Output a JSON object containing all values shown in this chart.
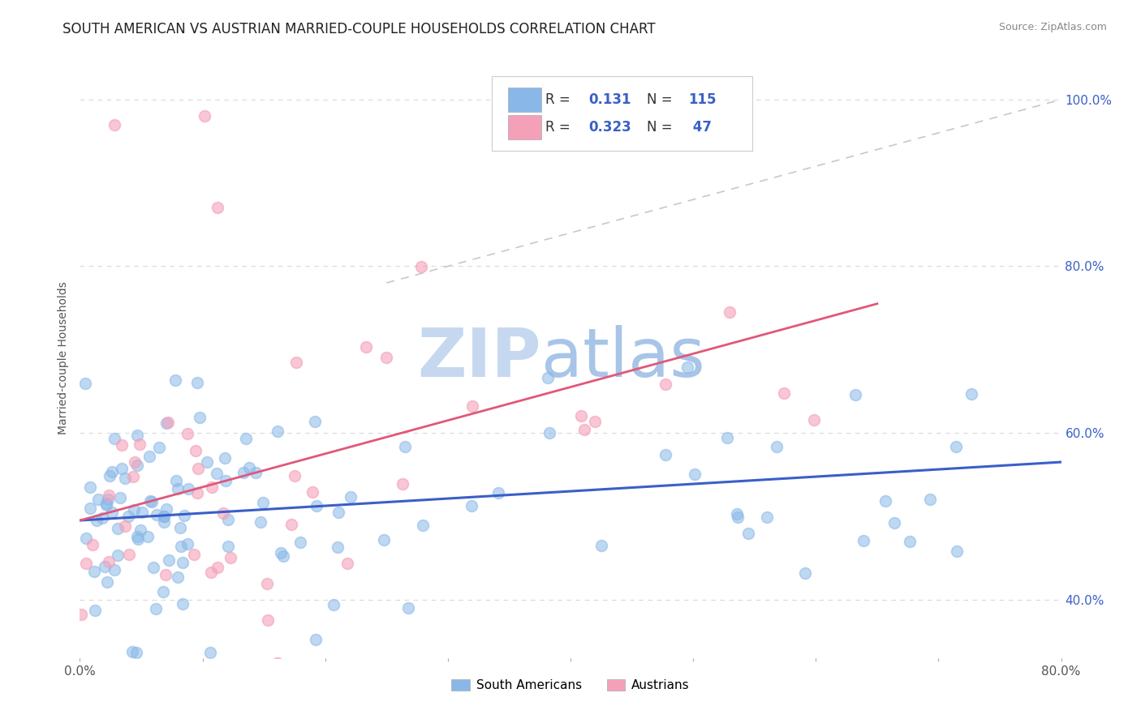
{
  "title": "SOUTH AMERICAN VS AUSTRIAN MARRIED-COUPLE HOUSEHOLDS CORRELATION CHART",
  "source_text": "Source: ZipAtlas.com",
  "ylabel": "Married-couple Households",
  "xlim": [
    0.0,
    0.8
  ],
  "ylim": [
    0.33,
    1.05
  ],
  "x_ticks": [
    0.0,
    0.8
  ],
  "x_tick_labels": [
    "0.0%",
    "80.0%"
  ],
  "y_ticks": [
    0.4,
    0.6,
    0.8,
    1.0
  ],
  "y_tick_labels": [
    "40.0%",
    "60.0%",
    "80.0%",
    "100.0%"
  ],
  "blue_color": "#89b8e8",
  "pink_color": "#f4a0b8",
  "blue_line_color": "#3a5fc8",
  "pink_line_color": "#e05878",
  "dashed_line_color": "#c8c8c8",
  "watermark_color": "#d8e8f8",
  "legend_label_blue": "South Americans",
  "legend_label_pink": "Austrians",
  "legend_r_blue": "0.131",
  "legend_n_blue": "115",
  "legend_r_pink": "0.323",
  "legend_n_pink": "47",
  "legend_text_color": "#3a5fc8",
  "bg_color": "#ffffff",
  "grid_color": "#d8d8d8",
  "title_fontsize": 12,
  "tick_fontsize": 11,
  "blue_line_x0": 0.0,
  "blue_line_y0": 0.495,
  "blue_line_x1": 0.8,
  "blue_line_y1": 0.565,
  "pink_line_x0": 0.0,
  "pink_line_y0": 0.495,
  "pink_line_x1": 0.65,
  "pink_line_y1": 0.755,
  "dash_line_x0": 0.25,
  "dash_line_y0": 0.78,
  "dash_line_x1": 0.8,
  "dash_line_y1": 1.0
}
